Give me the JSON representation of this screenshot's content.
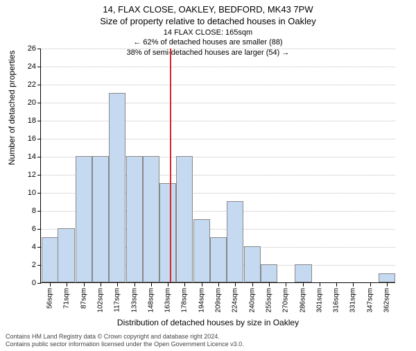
{
  "title_main": "14, FLAX CLOSE, OAKLEY, BEDFORD, MK43 7PW",
  "title_sub": "Size of property relative to detached houses in Oakley",
  "annotation": {
    "line1": "14 FLAX CLOSE: 165sqm",
    "line2": "← 62% of detached houses are smaller (88)",
    "line3": "38% of semi-detached houses are larger (54) →"
  },
  "y_axis_label": "Number of detached properties",
  "x_axis_label": "Distribution of detached houses by size in Oakley",
  "footer_line1": "Contains HM Land Registry data © Crown copyright and database right 2024.",
  "footer_line2": "Contains public sector information licensed under the Open Government Licence v3.0.",
  "chart": {
    "type": "histogram",
    "y_min": 0,
    "y_max": 26,
    "y_tick_step": 2,
    "bar_color": "#c5d9f1",
    "bar_border_color": "#888888",
    "grid_color": "#bbbbbb",
    "background_color": "#ffffff",
    "marker_line_color": "#d62728",
    "marker_x": 165,
    "x_min": 48,
    "x_max": 370,
    "bar_bin_width": 15.33,
    "x_ticks": [
      56,
      71,
      87,
      102,
      117,
      133,
      148,
      163,
      178,
      194,
      209,
      224,
      240,
      255,
      270,
      286,
      301,
      316,
      331,
      347,
      362
    ],
    "x_tick_labels": [
      "56sqm",
      "71sqm",
      "87sqm",
      "102sqm",
      "117sqm",
      "133sqm",
      "148sqm",
      "163sqm",
      "178sqm",
      "194sqm",
      "209sqm",
      "224sqm",
      "240sqm",
      "255sqm",
      "270sqm",
      "286sqm",
      "301sqm",
      "316sqm",
      "331sqm",
      "347sqm",
      "362sqm"
    ],
    "bars": [
      {
        "x": 56,
        "h": 5
      },
      {
        "x": 71,
        "h": 6
      },
      {
        "x": 87,
        "h": 14
      },
      {
        "x": 102,
        "h": 14
      },
      {
        "x": 117,
        "h": 21
      },
      {
        "x": 133,
        "h": 14
      },
      {
        "x": 148,
        "h": 14
      },
      {
        "x": 163,
        "h": 11
      },
      {
        "x": 178,
        "h": 14
      },
      {
        "x": 194,
        "h": 7
      },
      {
        "x": 209,
        "h": 5
      },
      {
        "x": 224,
        "h": 9
      },
      {
        "x": 240,
        "h": 4
      },
      {
        "x": 255,
        "h": 2
      },
      {
        "x": 270,
        "h": 0
      },
      {
        "x": 286,
        "h": 2
      },
      {
        "x": 301,
        "h": 0
      },
      {
        "x": 316,
        "h": 0
      },
      {
        "x": 331,
        "h": 0
      },
      {
        "x": 347,
        "h": 0
      },
      {
        "x": 362,
        "h": 1
      }
    ]
  }
}
